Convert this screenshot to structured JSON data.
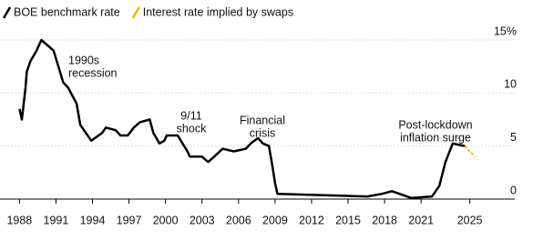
{
  "chart_data": {
    "type": "line",
    "xlim": [
      1987.3,
      2027.2
    ],
    "xticks": [
      1988,
      1991,
      1994,
      1997,
      2000,
      2003,
      2006,
      2009,
      2012,
      2015,
      2018,
      2021,
      2025
    ],
    "ylim": [
      0,
      15
    ],
    "yticks": [
      0,
      5,
      10,
      {
        "value": 15,
        "label": "15%"
      }
    ],
    "grid": true,
    "series": [
      {
        "name": "BOE benchmark rate",
        "color": "#000000",
        "x": [
          1988.0,
          1988.2,
          1988.5,
          1988.6,
          1988.9,
          1989.4,
          1989.8,
          1990.8,
          1991.2,
          1991.6,
          1992.0,
          1992.7,
          1993.0,
          1993.9,
          1994.8,
          1995.1,
          1995.9,
          1996.3,
          1996.9,
          1997.4,
          1997.9,
          1998.7,
          1999.0,
          1999.5,
          1999.9,
          2000.1,
          2001.0,
          2001.8,
          2002.0,
          2003.0,
          2003.5,
          2004.0,
          2004.7,
          2005.6,
          2006.6,
          2007.0,
          2007.6,
          2008.0,
          2008.5,
          2008.8,
          2009.0,
          2009.2,
          2016.6,
          2017.8,
          2018.6,
          2020.2,
          2021.9,
          2022.5,
          2023.0,
          2023.6,
          2024.6
        ],
        "values": [
          8.5,
          7.5,
          10.5,
          12,
          13,
          14,
          15,
          14,
          12.5,
          11,
          10.5,
          9,
          7,
          5.5,
          6.25,
          6.75,
          6.5,
          6,
          6,
          6.75,
          7.25,
          7.5,
          6.25,
          5.25,
          5.5,
          6,
          6,
          4.5,
          4,
          4,
          3.5,
          4,
          4.75,
          4.5,
          4.75,
          5.25,
          5.75,
          5.25,
          5,
          3,
          1.5,
          0.5,
          0.25,
          0.5,
          0.75,
          0.1,
          0.25,
          1.25,
          3.5,
          5.25,
          5
        ]
      },
      {
        "name": "Interest rate implied by swaps",
        "color": "#f5b800",
        "x": [
          2024.6,
          2025.0,
          2025.4
        ],
        "values": [
          5,
          4.5,
          4.0
        ]
      }
    ],
    "annotations": [
      {
        "lines": [
          "1990s",
          "recession"
        ]
      },
      {
        "lines": [
          "9/11",
          "shock"
        ]
      },
      {
        "lines": [
          "Financial",
          "crisis"
        ]
      },
      {
        "lines": [
          "Post-lockdown",
          "inflation surge"
        ]
      }
    ]
  }
}
